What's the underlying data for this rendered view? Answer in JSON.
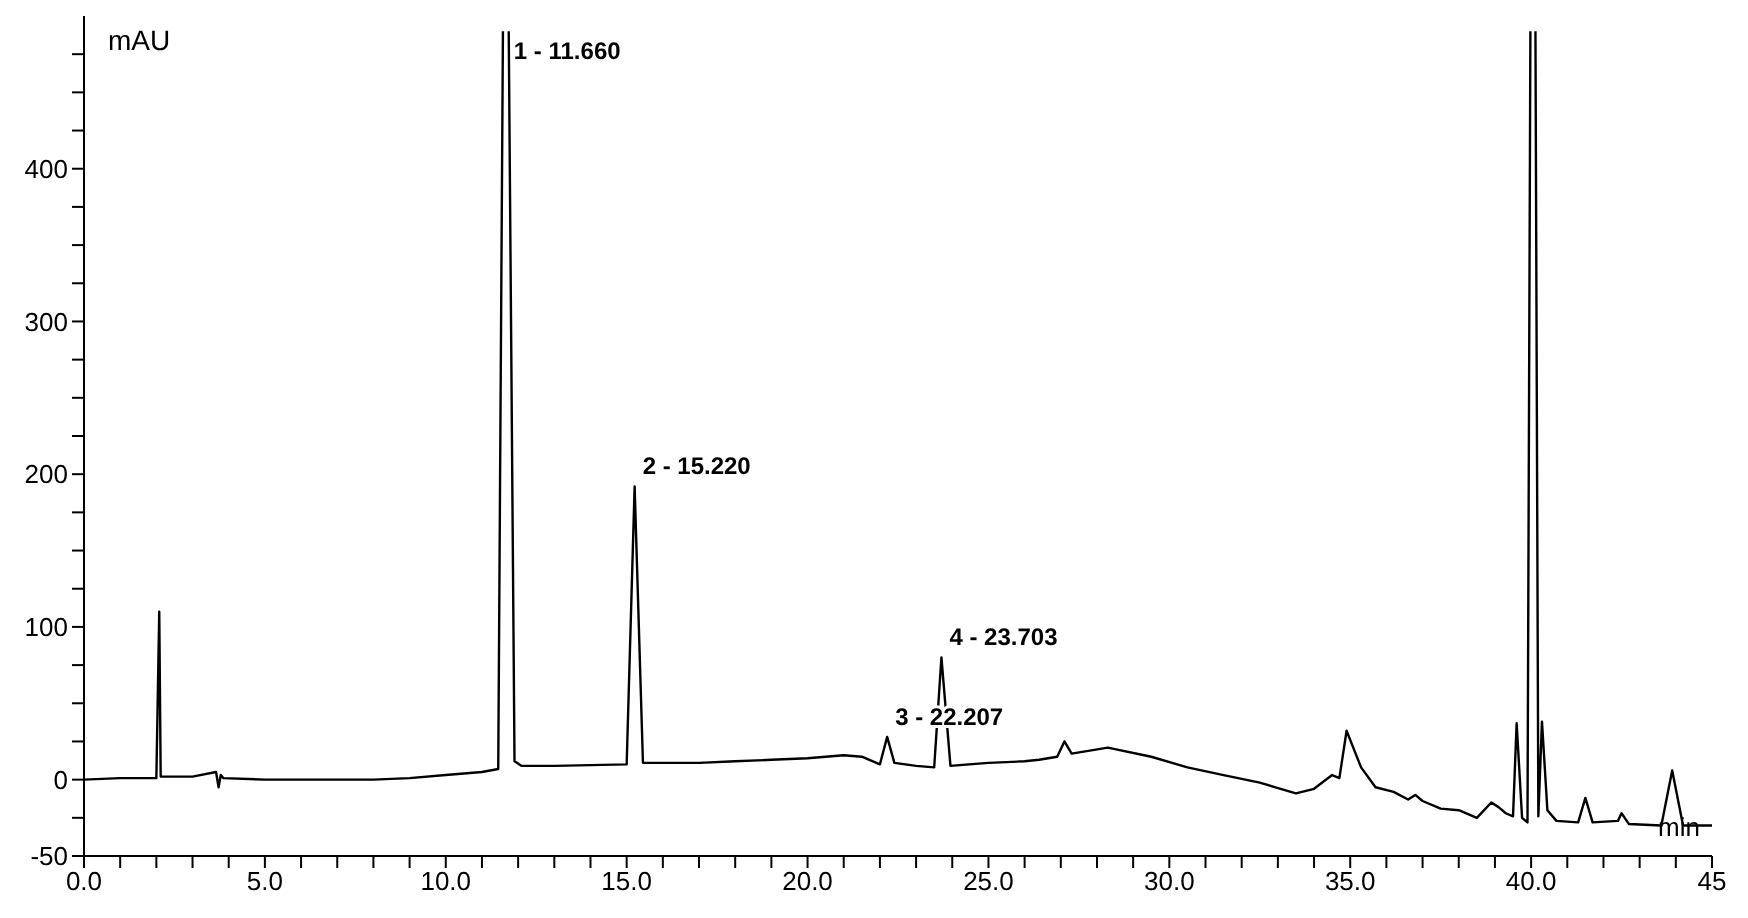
{
  "chart_data": {
    "type": "line",
    "xlabel": "min",
    "ylabel": "mAU",
    "xlim": [
      0,
      45
    ],
    "ylim": [
      -50,
      500
    ],
    "xticks": [
      {
        "value": 0,
        "label": "0.0"
      },
      {
        "value": 1,
        "label": null
      },
      {
        "value": 2,
        "label": null
      },
      {
        "value": 3,
        "label": null
      },
      {
        "value": 4,
        "label": null
      },
      {
        "value": 5,
        "label": "5.0"
      },
      {
        "value": 6,
        "label": null
      },
      {
        "value": 7,
        "label": null
      },
      {
        "value": 8,
        "label": null
      },
      {
        "value": 9,
        "label": null
      },
      {
        "value": 10,
        "label": "10.0"
      },
      {
        "value": 11,
        "label": null
      },
      {
        "value": 12,
        "label": null
      },
      {
        "value": 13,
        "label": null
      },
      {
        "value": 14,
        "label": null
      },
      {
        "value": 15,
        "label": "15.0"
      },
      {
        "value": 16,
        "label": null
      },
      {
        "value": 17,
        "label": null
      },
      {
        "value": 18,
        "label": null
      },
      {
        "value": 19,
        "label": null
      },
      {
        "value": 20,
        "label": "20.0"
      },
      {
        "value": 21,
        "label": null
      },
      {
        "value": 22,
        "label": null
      },
      {
        "value": 23,
        "label": null
      },
      {
        "value": 24,
        "label": null
      },
      {
        "value": 25,
        "label": "25.0"
      },
      {
        "value": 26,
        "label": null
      },
      {
        "value": 27,
        "label": null
      },
      {
        "value": 28,
        "label": null
      },
      {
        "value": 29,
        "label": null
      },
      {
        "value": 30,
        "label": "30.0"
      },
      {
        "value": 31,
        "label": null
      },
      {
        "value": 32,
        "label": null
      },
      {
        "value": 33,
        "label": null
      },
      {
        "value": 34,
        "label": null
      },
      {
        "value": 35,
        "label": "35.0"
      },
      {
        "value": 36,
        "label": null
      },
      {
        "value": 37,
        "label": null
      },
      {
        "value": 38,
        "label": null
      },
      {
        "value": 39,
        "label": null
      },
      {
        "value": 40,
        "label": "40.0"
      },
      {
        "value": 41,
        "label": null
      },
      {
        "value": 42,
        "label": null
      },
      {
        "value": 43,
        "label": null
      },
      {
        "value": 44,
        "label": null
      },
      {
        "value": 45,
        "label": "45"
      }
    ],
    "yticks": [
      -50,
      {
        "value": -25,
        "label": null
      },
      0,
      {
        "value": 25,
        "label": null
      },
      {
        "value": 50,
        "label": null
      },
      {
        "value": 75,
        "label": null
      },
      100,
      {
        "value": 125,
        "label": null
      },
      {
        "value": 150,
        "label": null
      },
      {
        "value": 175,
        "label": null
      },
      200,
      {
        "value": 225,
        "label": null
      },
      {
        "value": 250,
        "label": null
      },
      {
        "value": 275,
        "label": null
      },
      300,
      {
        "value": 325,
        "label": null
      },
      {
        "value": 350,
        "label": null
      },
      {
        "value": 375,
        "label": null
      },
      400,
      {
        "value": 425,
        "label": null
      },
      {
        "value": 450,
        "label": null
      },
      {
        "value": 475,
        "label": null
      }
    ],
    "grid": false,
    "legend": false,
    "marker": "none",
    "line_style": "solid",
    "series": [
      {
        "color": "#000000",
        "x": [
          0,
          1,
          2.0,
          2.08,
          2.12,
          2.2,
          3.0,
          3.65,
          3.72,
          3.78,
          3.85,
          5,
          6,
          7,
          8,
          9,
          10,
          11.0,
          11.45,
          11.58,
          11.66,
          11.74,
          11.9,
          12.1,
          13,
          15.0,
          15.22,
          15.45,
          17,
          18,
          19,
          20,
          21,
          21.5,
          22.0,
          22.2,
          22.4,
          23.0,
          23.5,
          23.7,
          23.95,
          25,
          26,
          26.4,
          26.9,
          27.1,
          27.3,
          28.3,
          29.5,
          30.5,
          31.5,
          32.5,
          33.5,
          34.0,
          34.5,
          34.7,
          34.9,
          35.1,
          35.3,
          35.7,
          36.2,
          36.6,
          36.8,
          37.0,
          37.5,
          38.0,
          38.5,
          38.9,
          39.1,
          39.3,
          39.5,
          39.6,
          39.75,
          39.9,
          39.98,
          40.05,
          40.12,
          40.2,
          40.3,
          40.45,
          40.7,
          41.3,
          41.5,
          41.7,
          42.4,
          42.5,
          42.7,
          43.6,
          43.9,
          44.2,
          45
        ],
        "values": [
          0,
          1,
          1,
          110,
          2,
          2,
          2,
          5,
          -5,
          3,
          1,
          0,
          0,
          0,
          0,
          1,
          3,
          5,
          7,
          490,
          null,
          490,
          12,
          9,
          9,
          10,
          192,
          11,
          11,
          12,
          13,
          14,
          16,
          15,
          10,
          28,
          11,
          9,
          8,
          80,
          9,
          11,
          12,
          13,
          15,
          25,
          17,
          21,
          15,
          8,
          3,
          -2,
          -9,
          -6,
          3,
          1,
          32,
          20,
          8,
          -5,
          -8,
          -13,
          -10,
          -14,
          -19,
          -20,
          -25,
          -15,
          -18,
          -22,
          -24,
          37,
          -25,
          -28,
          490,
          null,
          490,
          -24,
          38,
          -20,
          -27,
          -28,
          -12,
          -28,
          -27,
          -22,
          -29,
          -30,
          6,
          -30,
          -30
        ]
      }
    ],
    "annotations": [
      {
        "text": "1 - 11.660",
        "x": 11.66,
        "y": 490
      },
      {
        "text": "2 - 15.220",
        "x": 15.22,
        "y": 192
      },
      {
        "text": "3 - 22.207",
        "x": 22.2,
        "y": 28
      },
      {
        "text": "4 - 23.703",
        "x": 23.7,
        "y": 80
      }
    ]
  }
}
